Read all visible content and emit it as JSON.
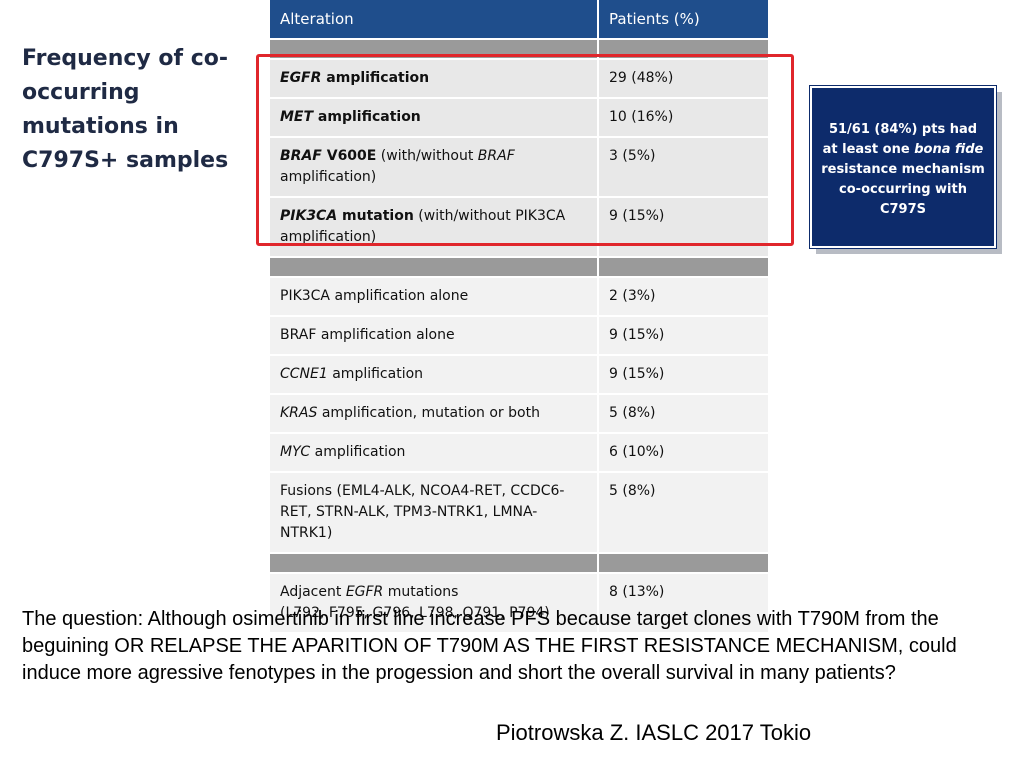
{
  "title": "Frequency of co-occurring mutations in C797S+ samples",
  "table": {
    "headers": {
      "alteration": "Alteration",
      "patients": "Patients (%)"
    },
    "rows": [
      {
        "g": "EGFR",
        "rest": " amplification",
        "patients": "29 (48%)"
      },
      {
        "g": "MET",
        "rest": " amplification",
        "patients": "10 (16%)"
      },
      {
        "p1": "BRAF",
        "p2": " V600E",
        "p3": " (with/without ",
        "p4": "BRAF",
        "p5": " amplification)",
        "patients": "3 (5%)"
      },
      {
        "p1": "PIK3CA",
        "p2": " mutation",
        "p3": " (with/without PIK3CA amplification)",
        "patients": "9 (15%)"
      },
      {
        "text": "PIK3CA amplification alone",
        "patients": "2 (3%)"
      },
      {
        "text": "BRAF amplification alone",
        "patients": "9 (15%)"
      },
      {
        "g": "CCNE1",
        "rest": " amplification",
        "patients": "9 (15%)"
      },
      {
        "g": "KRAS",
        "rest": " amplification, mutation or both",
        "patients": "5 (8%)"
      },
      {
        "g": "MYC",
        "rest": " amplification",
        "patients": "6 (10%)"
      },
      {
        "text": "Fusions (EML4-ALK, NCOA4-RET, CCDC6-RET, STRN-ALK, TPM3-NTRK1, LMNA-NTRK1)",
        "patients": "5 (8%)"
      },
      {
        "a": "Adjacent ",
        "g": "EGFR",
        "rest": " mutations",
        "sub": "(L792, F795, G796, L798, Q791, P794)",
        "patients": "8 (13%)"
      }
    ]
  },
  "callout": {
    "part1": "51/61 (84%) pts had at least one ",
    "italic": "bona fide",
    "part2": " resistance mechanism co-occurring with C797S"
  },
  "question": "The question: Although osimertinib in first line increase PFS because target clones with T790M from the beguining OR RELAPSE THE APARITION OF T790M AS THE FIRST RESISTANCE MECHANISM,  could induce more agressive fenotypes in the progession and short the overall survival in many patients?",
  "citation": "Piotrowska Z. IASLC 2017 Tokio",
  "colors": {
    "header": "#1f4e8c",
    "highlight": "#e0262b",
    "callout": "#0d2b6b"
  }
}
